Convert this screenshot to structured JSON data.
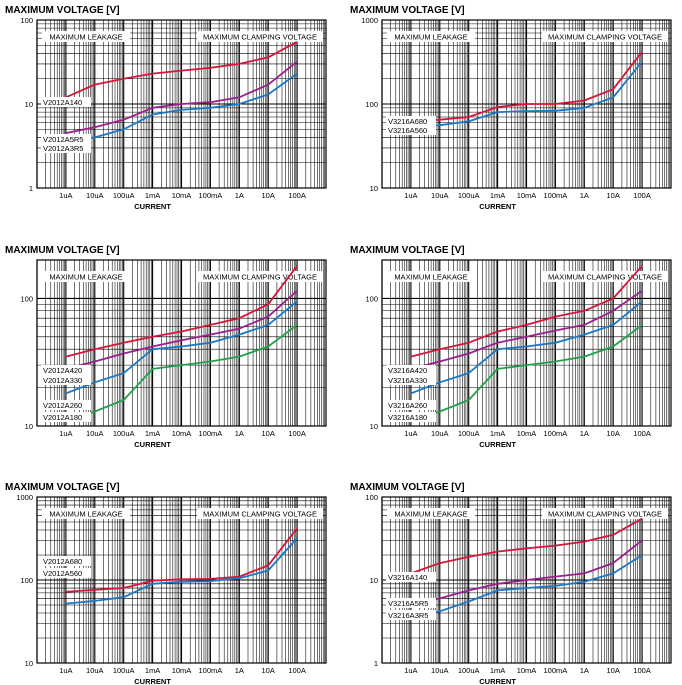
{
  "x_tick_labels": [
    "1uA",
    "10uA",
    "100uA",
    "1mA",
    "10mA",
    "100mA",
    "1A",
    "10A",
    "100A"
  ],
  "xlabel": "CURRENT",
  "colors": {
    "red": "#d6153a",
    "purple": "#9b1f8f",
    "blue": "#1b78c8",
    "green": "#1fa24a",
    "grid": "#000000"
  },
  "chart_data": [
    {
      "type": "line",
      "title": "MAXIMUM VOLTAGE [V]",
      "xlabel": "CURRENT",
      "y_scale": "log",
      "x_scale": "log",
      "ylim": [
        1,
        100
      ],
      "y_ticks": [
        "1",
        "10",
        "100"
      ],
      "xlim_amps": [
        1e-07,
        1000
      ],
      "regions": {
        "left": "MAXIMUM LEAKAGE",
        "right": "MAXIMUM CLAMPING VOLTAGE"
      },
      "labels": [
        "V2012A140",
        "V2012A5R5",
        "V2012A3R5"
      ],
      "series": [
        {
          "name": "V2012A140",
          "color": "red",
          "points": [
            [
              1e-06,
              12
            ],
            [
              1e-05,
              17
            ],
            [
              0.0001,
              20
            ],
            [
              0.001,
              23
            ],
            [
              0.01,
              25
            ],
            [
              0.1,
              27
            ],
            [
              1,
              30
            ],
            [
              10,
              36
            ],
            [
              100,
              55
            ]
          ]
        },
        {
          "name": "V2012A5R5",
          "color": "purple",
          "points": [
            [
              1e-06,
              4.5
            ],
            [
              1e-05,
              5.3
            ],
            [
              0.0001,
              6.5
            ],
            [
              0.001,
              9
            ],
            [
              0.01,
              10
            ],
            [
              0.1,
              10.5
            ],
            [
              1,
              12
            ],
            [
              10,
              17
            ],
            [
              100,
              32
            ]
          ]
        },
        {
          "name": "V2012A3R5",
          "color": "blue",
          "points": [
            [
              1e-06,
              3.5
            ],
            [
              1e-05,
              4
            ],
            [
              0.0001,
              5
            ],
            [
              0.001,
              7.5
            ],
            [
              0.01,
              8.5
            ],
            [
              0.1,
              9
            ],
            [
              1,
              10
            ],
            [
              10,
              13
            ],
            [
              100,
              23
            ]
          ]
        }
      ]
    },
    {
      "type": "line",
      "title": "MAXIMUM VOLTAGE [V]",
      "xlabel": "CURRENT",
      "y_scale": "log",
      "x_scale": "log",
      "ylim": [
        10,
        1000
      ],
      "y_ticks": [
        "10",
        "100",
        "1000"
      ],
      "xlim_amps": [
        1e-07,
        1000
      ],
      "regions": {
        "left": "MAXIMUM LEAKAGE",
        "right": "MAXIMUM CLAMPING VOLTAGE"
      },
      "labels": [
        "V3216A680",
        "V3216A560"
      ],
      "series": [
        {
          "name": "V3216A680",
          "color": "red",
          "points": [
            [
              1e-06,
              62
            ],
            [
              1e-05,
              65
            ],
            [
              0.0001,
              70
            ],
            [
              0.001,
              92
            ],
            [
              0.01,
              100
            ],
            [
              0.1,
              100
            ],
            [
              1,
              110
            ],
            [
              10,
              150
            ],
            [
              100,
              420
            ]
          ]
        },
        {
          "name": "V3216A560",
          "color": "blue",
          "points": [
            [
              1e-06,
              52
            ],
            [
              1e-05,
              56
            ],
            [
              0.0001,
              62
            ],
            [
              0.001,
              80
            ],
            [
              0.01,
              82
            ],
            [
              0.1,
              83
            ],
            [
              1,
              90
            ],
            [
              10,
              120
            ],
            [
              100,
              320
            ]
          ]
        }
      ]
    },
    {
      "type": "line",
      "title": "MAXIMUM VOLTAGE [V]",
      "xlabel": "CURRENT",
      "y_scale": "log",
      "x_scale": "log",
      "ylim": [
        10,
        200
      ],
      "y_ticks": [
        "10",
        "100"
      ],
      "xlim_amps": [
        1e-07,
        1000
      ],
      "regions": {
        "left": "MAXIMUM LEAKAGE",
        "right": "MAXIMUM CLAMPING VOLTAGE"
      },
      "labels": [
        "V2012A420",
        "V2012A330",
        "V2012A260",
        "V2012A180"
      ],
      "series": [
        {
          "name": "V2012A420",
          "color": "red",
          "points": [
            [
              1e-06,
              35
            ],
            [
              1e-05,
              40
            ],
            [
              0.0001,
              45
            ],
            [
              0.001,
              50
            ],
            [
              0.01,
              55
            ],
            [
              0.1,
              62
            ],
            [
              1,
              70
            ],
            [
              10,
              90
            ],
            [
              100,
              180
            ]
          ]
        },
        {
          "name": "V2012A330",
          "color": "purple",
          "points": [
            [
              1e-06,
              28
            ],
            [
              1e-05,
              32
            ],
            [
              0.0001,
              37
            ],
            [
              0.001,
              42
            ],
            [
              0.01,
              47
            ],
            [
              0.1,
              52
            ],
            [
              1,
              58
            ],
            [
              10,
              72
            ],
            [
              100,
              115
            ]
          ]
        },
        {
          "name": "V2012A260",
          "color": "blue",
          "points": [
            [
              1e-06,
              18
            ],
            [
              1e-05,
              22
            ],
            [
              0.0001,
              26
            ],
            [
              0.001,
              40
            ],
            [
              0.01,
              42
            ],
            [
              0.1,
              45
            ],
            [
              1,
              52
            ],
            [
              10,
              62
            ],
            [
              100,
              95
            ]
          ]
        },
        {
          "name": "V2012A180",
          "color": "green",
          "points": [
            [
              1e-06,
              11
            ],
            [
              1e-05,
              13
            ],
            [
              0.0001,
              16
            ],
            [
              0.001,
              28
            ],
            [
              0.01,
              30
            ],
            [
              0.1,
              32
            ],
            [
              1,
              35
            ],
            [
              10,
              42
            ],
            [
              100,
              62
            ]
          ]
        }
      ]
    },
    {
      "type": "line",
      "title": "MAXIMUM VOLTAGE [V]",
      "xlabel": "CURRENT",
      "y_scale": "log",
      "x_scale": "log",
      "ylim": [
        10,
        200
      ],
      "y_ticks": [
        "10",
        "100"
      ],
      "xlim_amps": [
        1e-07,
        1000
      ],
      "regions": {
        "left": "MAXIMUM LEAKAGE",
        "right": "MAXIMUM CLAMPING VOLTAGE"
      },
      "labels": [
        "V3216A420",
        "V3216A330",
        "V3216A260",
        "V3216A180"
      ],
      "series": [
        {
          "name": "V3216A420",
          "color": "red",
          "points": [
            [
              1e-06,
              35
            ],
            [
              1e-05,
              40
            ],
            [
              0.0001,
              45
            ],
            [
              0.001,
              55
            ],
            [
              0.01,
              62
            ],
            [
              0.1,
              72
            ],
            [
              1,
              80
            ],
            [
              10,
              100
            ],
            [
              100,
              180
            ]
          ]
        },
        {
          "name": "V3216A330",
          "color": "purple",
          "points": [
            [
              1e-06,
              28
            ],
            [
              1e-05,
              32
            ],
            [
              0.0001,
              37
            ],
            [
              0.001,
              45
            ],
            [
              0.01,
              50
            ],
            [
              0.1,
              56
            ],
            [
              1,
              62
            ],
            [
              10,
              80
            ],
            [
              100,
              115
            ]
          ]
        },
        {
          "name": "V3216A260",
          "color": "blue",
          "points": [
            [
              1e-06,
              18
            ],
            [
              1e-05,
              22
            ],
            [
              0.0001,
              26
            ],
            [
              0.001,
              40
            ],
            [
              0.01,
              42
            ],
            [
              0.1,
              45
            ],
            [
              1,
              52
            ],
            [
              10,
              62
            ],
            [
              100,
              95
            ]
          ]
        },
        {
          "name": "V3216A180",
          "color": "green",
          "points": [
            [
              1e-06,
              11
            ],
            [
              1e-05,
              13
            ],
            [
              0.0001,
              16
            ],
            [
              0.001,
              28
            ],
            [
              0.01,
              30
            ],
            [
              0.1,
              32
            ],
            [
              1,
              35
            ],
            [
              10,
              42
            ],
            [
              100,
              62
            ]
          ]
        }
      ]
    },
    {
      "type": "line",
      "title": "MAXIMUM VOLTAGE [V]",
      "xlabel": "CURRENT",
      "y_scale": "log",
      "x_scale": "log",
      "ylim": [
        10,
        1000
      ],
      "y_ticks": [
        "10",
        "100",
        "1000"
      ],
      "xlim_amps": [
        1e-07,
        1000
      ],
      "regions": {
        "left": "MAXIMUM LEAKAGE",
        "right": "MAXIMUM CLAMPING VOLTAGE"
      },
      "labels": [
        "V2012A680",
        "V2012A560"
      ],
      "series": [
        {
          "name": "V2012A680",
          "color": "red",
          "points": [
            [
              1e-06,
              72
            ],
            [
              1e-05,
              76
            ],
            [
              0.0001,
              80
            ],
            [
              0.001,
              98
            ],
            [
              0.01,
              102
            ],
            [
              0.1,
              103
            ],
            [
              1,
              110
            ],
            [
              10,
              150
            ],
            [
              100,
              420
            ]
          ]
        },
        {
          "name": "V2012A560",
          "color": "blue",
          "points": [
            [
              1e-06,
              52
            ],
            [
              1e-05,
              56
            ],
            [
              0.0001,
              62
            ],
            [
              0.001,
              90
            ],
            [
              0.01,
              95
            ],
            [
              0.1,
              97
            ],
            [
              1,
              105
            ],
            [
              10,
              130
            ],
            [
              100,
              320
            ]
          ]
        }
      ]
    },
    {
      "type": "line",
      "title": "MAXIMUM VOLTAGE [V]",
      "xlabel": "CURRENT",
      "y_scale": "log",
      "x_scale": "log",
      "ylim": [
        1,
        100
      ],
      "y_ticks": [
        "1",
        "10",
        "100"
      ],
      "xlim_amps": [
        1e-07,
        1000
      ],
      "regions": {
        "left": "MAXIMUM LEAKAGE",
        "right": "MAXIMUM CLAMPING VOLTAGE"
      },
      "labels": [
        "V3216A140",
        "V3216A5R5",
        "V3216A3R5"
      ],
      "series": [
        {
          "name": "V3216A140",
          "color": "red",
          "points": [
            [
              1e-06,
              12
            ],
            [
              1e-05,
              16
            ],
            [
              0.0001,
              19
            ],
            [
              0.001,
              22
            ],
            [
              0.01,
              24
            ],
            [
              0.1,
              26
            ],
            [
              1,
              29
            ],
            [
              10,
              35
            ],
            [
              100,
              55
            ]
          ]
        },
        {
          "name": "V3216A5R5",
          "color": "purple",
          "points": [
            [
              1e-06,
              5
            ],
            [
              1e-05,
              6
            ],
            [
              0.0001,
              7.5
            ],
            [
              0.001,
              9
            ],
            [
              0.01,
              10
            ],
            [
              0.1,
              11
            ],
            [
              1,
              12
            ],
            [
              10,
              16
            ],
            [
              100,
              30
            ]
          ]
        },
        {
          "name": "V3216A3R5",
          "color": "blue",
          "points": [
            [
              1e-06,
              3.5
            ],
            [
              1e-05,
              4.2
            ],
            [
              0.0001,
              5.5
            ],
            [
              0.001,
              7.5
            ],
            [
              0.01,
              8
            ],
            [
              0.1,
              8.5
            ],
            [
              1,
              9.5
            ],
            [
              10,
              12
            ],
            [
              100,
              20
            ]
          ]
        }
      ]
    }
  ]
}
